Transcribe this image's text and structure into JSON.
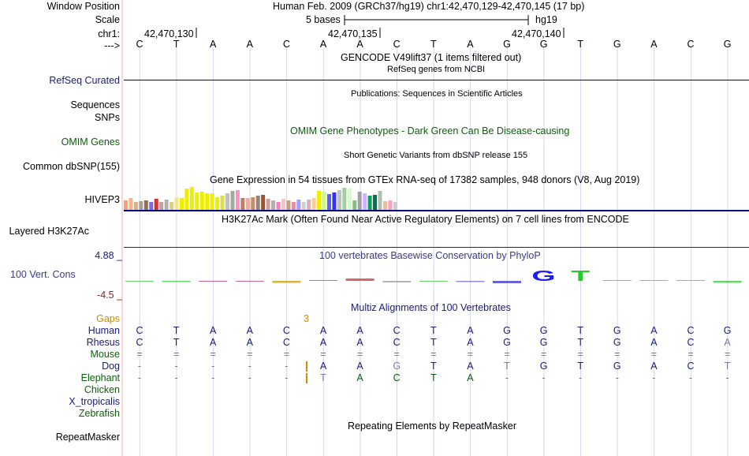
{
  "header": {
    "window_position_label": "Window Position",
    "window_position_text": "Human Feb. 2009 (GRCh37/hg19)   chr1:42,470,129-42,470,145 (17 bp)",
    "scale_label": "Scale",
    "scale_text": "5 bases",
    "scale_assembly": "hg19",
    "chrom_label": "chr1:",
    "positions": [
      "42,470,130",
      "42,470,135",
      "42,470,140"
    ],
    "strand_label": "--->"
  },
  "base_sequence": [
    "C",
    "T",
    "A",
    "A",
    "C",
    "A",
    "A",
    "C",
    "T",
    "A",
    "G",
    "G",
    "T",
    "G",
    "A",
    "C",
    "G"
  ],
  "tracks": {
    "gencode_title": "GENCODE V49lift37 (1 items filtered out)",
    "refseq_title": "RefSeq genes from NCBI",
    "refseq_label": "RefSeq Curated",
    "publications_title": "Publications: Sequences in Scientific Articles",
    "sequences_label": "Sequences",
    "snps_label": "SNPs",
    "omim_title": "OMIM Gene Phenotypes - Dark Green Can Be Disease-causing",
    "omim_label": "OMIM Genes",
    "dbsnp_title": "Short Genetic Variants from dbSNP release 155",
    "dbsnp_label": "Common dbSNP(155)",
    "gtex_title": "Gene Expression in 54 tissues from GTEx RNA-seq of 17382 samples, 948 donors (V8, Aug 2019)",
    "gtex_label": "HIVEP3",
    "h3k27ac_title": "H3K27Ac Mark (Often Found Near Active Regulatory Elements) on 7 cell lines from ENCODE",
    "h3k27ac_label": "Layered H3K27Ac",
    "cons_title": "100 vertebrates Basewise Conservation by PhyloP",
    "cons_label": "100 Vert. Cons",
    "cons_max": "4.88 _",
    "cons_min": "-4.5 _",
    "multiz_title": "Multiz Alignments of 100 Vertebrates",
    "gaps_label": "Gaps",
    "gaps_value": "3",
    "repeat_title": "Repeating Elements by RepeatMasker",
    "repeat_label": "RepeatMasker"
  },
  "gtex_heights": [
    12,
    15,
    10,
    11,
    12,
    10,
    14,
    10,
    13,
    10,
    16,
    15,
    27,
    29,
    22,
    23,
    21,
    21,
    16,
    18,
    21,
    24,
    25,
    15,
    15,
    16,
    18,
    19,
    14,
    12,
    10,
    14,
    12,
    10,
    13,
    10,
    13,
    15,
    24,
    23,
    20,
    22,
    25,
    28,
    27,
    12,
    23,
    21,
    18,
    19,
    24,
    11,
    12,
    10
  ],
  "gtex_colors": [
    "#ff9d6b",
    "#ffb28a",
    "#d2b48c",
    "#a0a0a0",
    "#9e6b4e",
    "#7b68ee",
    "#cc3333",
    "#c0a0a0",
    "#b0b0b0",
    "#e0d070",
    "#f0e68c",
    "#eeee00",
    "#eeee00",
    "#eeee00",
    "#eeee00",
    "#eeee00",
    "#eeee00",
    "#eeee00",
    "#eeee00",
    "#dddd55",
    "#c0c0c0",
    "#9faa9f",
    "#ff8fc0",
    "#c08060",
    "#e8b0a0",
    "#c09070",
    "#a08070",
    "#a0522d",
    "#d0a0a0",
    "#b0b0b0",
    "#ff80c0",
    "#ffc0c0",
    "#c0a080",
    "#e090a0",
    "#a0a0ff",
    "#d0d0d0",
    "#e0b0b0",
    "#ffcc99",
    "#eeee00",
    "#c9ff80",
    "#6060ff",
    "#3030ff",
    "#c0c0c0",
    "#a0d0a0",
    "#d0ffc0",
    "#80c080",
    "#a0a0a0",
    "#d0b0ff",
    "#00aa55",
    "#007050",
    "#b0c0b0",
    "#e0c0a0",
    "#ffa0c0",
    "#ccc"
  ],
  "conservation": {
    "bases": [
      "C",
      "T",
      "A",
      "A",
      "C",
      "A",
      "A",
      "C",
      "T",
      "A",
      "G",
      "G",
      "T",
      "G",
      "A",
      "C",
      "G"
    ],
    "scores": [
      -0.2,
      -0.3,
      -0.1,
      -0.1,
      -0.5,
      0.1,
      0.6,
      -0.4,
      -0.2,
      -0.3,
      -0.6,
      4.0,
      4.0,
      0.0,
      0.0,
      0.0,
      -0.5
    ],
    "highlight": [
      "G",
      "T"
    ]
  },
  "species": [
    {
      "name": "Human",
      "class": "navy",
      "bases": [
        "C",
        "T",
        "A",
        "A",
        "C",
        "A",
        "A",
        "C",
        "T",
        "A",
        "G",
        "G",
        "T",
        "G",
        "A",
        "C",
        "G"
      ]
    },
    {
      "name": "Rhesus",
      "class": "navy",
      "bases": [
        "C",
        "T",
        "A",
        "A",
        "C",
        "A",
        "A",
        "C",
        "T",
        "A",
        "G",
        "G",
        "T",
        "G",
        "A",
        "C",
        "A"
      ]
    },
    {
      "name": "Mouse",
      "class": "green",
      "bases": [
        "=",
        "=",
        "=",
        "=",
        "=",
        "=",
        "=",
        "=",
        "=",
        "=",
        "=",
        "=",
        "=",
        "=",
        "=",
        "=",
        "="
      ]
    },
    {
      "name": "Dog",
      "class": "navy",
      "bases": [
        "-",
        "-",
        "-",
        "-",
        "-",
        "A",
        "A",
        "G",
        "T",
        "A",
        "T",
        "G",
        "T",
        "G",
        "A",
        "C",
        "T"
      ]
    },
    {
      "name": "Elephant",
      "class": "green",
      "bases": [
        "-",
        "-",
        "-",
        "-",
        "-",
        "T",
        "A",
        "C",
        "T",
        "A",
        "-",
        "-",
        "-",
        "-",
        "-",
        "-",
        "-"
      ]
    },
    {
      "name": "Chicken",
      "class": "green",
      "bases": []
    },
    {
      "name": "X_tropicalis",
      "class": "navy",
      "bases": []
    },
    {
      "name": "Zebrafish",
      "class": "green",
      "bases": []
    }
  ],
  "colors": {
    "navy": "#1a1a7a",
    "green": "#0b5e0b",
    "separator": "#000080",
    "h3k27_sep": "#8b0000",
    "grid": "#d6d6f0",
    "left_border": "#f0b0b0"
  }
}
